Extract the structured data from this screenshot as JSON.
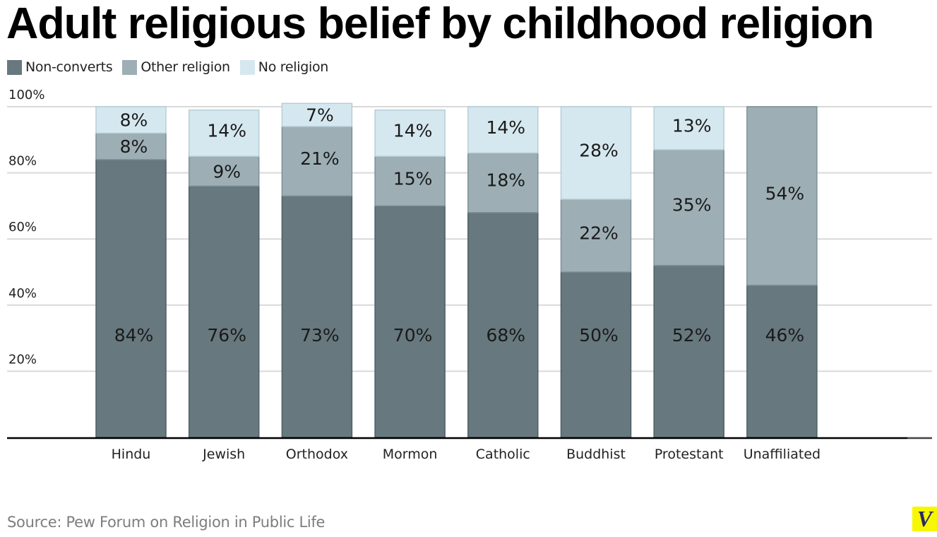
{
  "chart_data": {
    "type": "bar",
    "stacked": true,
    "title": "Adult religious belief by childhood religion",
    "xlabel": "",
    "ylabel": "",
    "ylim": [
      0,
      100
    ],
    "yticks": [
      20,
      40,
      60,
      80,
      100
    ],
    "ytick_labels": [
      "20%",
      "40%",
      "60%",
      "80%",
      "100%"
    ],
    "grid": true,
    "legend_position": "top-left",
    "categories": [
      "Hindu",
      "Jewish",
      "Orthodox",
      "Mormon",
      "Catholic",
      "Buddhist",
      "Protestant",
      "Unaffiliated"
    ],
    "series": [
      {
        "name": "Non-converts",
        "color": "#67787e",
        "values": [
          84,
          76,
          73,
          70,
          68,
          50,
          52,
          46
        ],
        "labels": [
          "84%",
          "76%",
          "73%",
          "70%",
          "68%",
          "50%",
          "52%",
          "46%"
        ]
      },
      {
        "name": "Other religion",
        "color": "#9dafb5",
        "values": [
          8,
          9,
          21,
          15,
          18,
          22,
          35,
          54
        ],
        "labels": [
          "8%",
          "9%",
          "21%",
          "15%",
          "18%",
          "22%",
          "35%",
          "54%"
        ]
      },
      {
        "name": "No religion",
        "color": "#d6e8ef",
        "values": [
          8,
          14,
          7,
          14,
          14,
          28,
          13,
          0
        ],
        "labels": [
          "8%",
          "14%",
          "7%",
          "14%",
          "14%",
          "28%",
          "13%",
          ""
        ]
      }
    ],
    "source": "Source: Pew Forum on Religion in Public Life"
  },
  "logo": {
    "text": "V",
    "background": "#f7f700"
  }
}
